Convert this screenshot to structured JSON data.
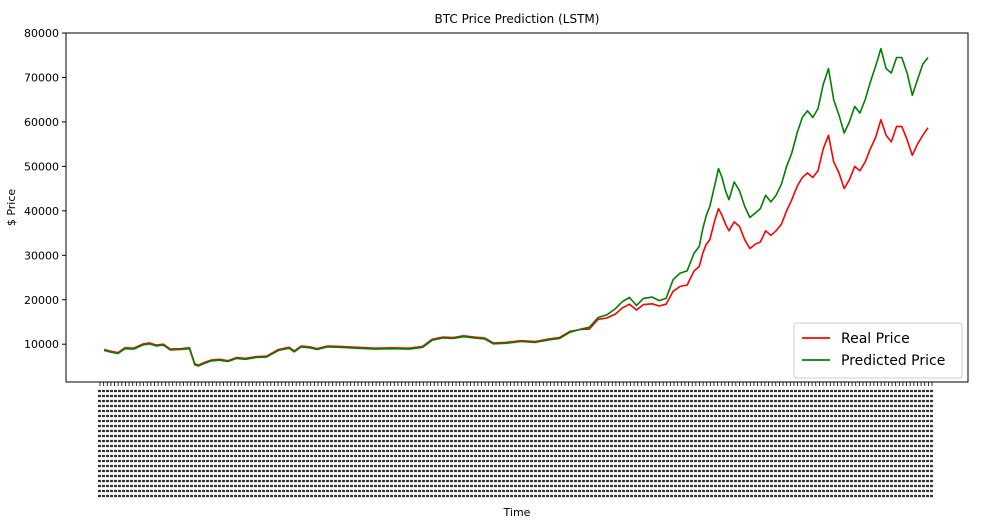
{
  "chart_data": {
    "type": "line",
    "title": "BTC Price Prediction (LSTM)",
    "xlabel": "Time",
    "ylabel": "$ Price",
    "ylim": [
      1500,
      80000
    ],
    "yticks": [
      10000,
      20000,
      30000,
      40000,
      50000,
      60000,
      70000,
      80000
    ],
    "x_tick_labels_legible": false,
    "legend_position": "lower-right",
    "series": [
      {
        "name": "Real Price",
        "color": "#ff0000",
        "points": [
          [
            0.0,
            8800
          ],
          [
            0.008,
            8400
          ],
          [
            0.016,
            8100
          ],
          [
            0.024,
            9200
          ],
          [
            0.034,
            9100
          ],
          [
            0.044,
            10000
          ],
          [
            0.052,
            10300
          ],
          [
            0.06,
            9800
          ],
          [
            0.068,
            10000
          ],
          [
            0.076,
            8900
          ],
          [
            0.088,
            9000
          ],
          [
            0.098,
            9200
          ],
          [
            0.104,
            5600
          ],
          [
            0.108,
            5300
          ],
          [
            0.114,
            5800
          ],
          [
            0.122,
            6400
          ],
          [
            0.132,
            6600
          ],
          [
            0.142,
            6300
          ],
          [
            0.152,
            7000
          ],
          [
            0.162,
            6800
          ],
          [
            0.174,
            7200
          ],
          [
            0.186,
            7300
          ],
          [
            0.2,
            8800
          ],
          [
            0.212,
            9300
          ],
          [
            0.218,
            8500
          ],
          [
            0.226,
            9600
          ],
          [
            0.236,
            9400
          ],
          [
            0.244,
            9000
          ],
          [
            0.256,
            9600
          ],
          [
            0.27,
            9500
          ],
          [
            0.29,
            9300
          ],
          [
            0.31,
            9100
          ],
          [
            0.33,
            9200
          ],
          [
            0.35,
            9100
          ],
          [
            0.365,
            9500
          ],
          [
            0.376,
            11100
          ],
          [
            0.388,
            11600
          ],
          [
            0.4,
            11500
          ],
          [
            0.412,
            11900
          ],
          [
            0.424,
            11600
          ],
          [
            0.436,
            11400
          ],
          [
            0.446,
            10300
          ],
          [
            0.46,
            10400
          ],
          [
            0.478,
            10800
          ],
          [
            0.494,
            10600
          ],
          [
            0.51,
            11200
          ],
          [
            0.522,
            11500
          ],
          [
            0.534,
            12900
          ],
          [
            0.546,
            13300
          ],
          [
            0.556,
            13400
          ],
          [
            0.566,
            15600
          ],
          [
            0.576,
            15900
          ],
          [
            0.586,
            16800
          ],
          [
            0.594,
            18200
          ],
          [
            0.602,
            19000
          ],
          [
            0.61,
            17700
          ],
          [
            0.618,
            18900
          ],
          [
            0.628,
            19100
          ],
          [
            0.636,
            18600
          ],
          [
            0.644,
            19000
          ],
          [
            0.652,
            21900
          ],
          [
            0.66,
            23000
          ],
          [
            0.668,
            23300
          ],
          [
            0.676,
            26500
          ],
          [
            0.682,
            27500
          ],
          [
            0.686,
            30500
          ],
          [
            0.69,
            32500
          ],
          [
            0.694,
            33500
          ],
          [
            0.7,
            38000
          ],
          [
            0.704,
            40500
          ],
          [
            0.708,
            39000
          ],
          [
            0.712,
            37000
          ],
          [
            0.716,
            35500
          ],
          [
            0.722,
            37500
          ],
          [
            0.728,
            36500
          ],
          [
            0.734,
            33500
          ],
          [
            0.74,
            31500
          ],
          [
            0.746,
            32500
          ],
          [
            0.752,
            33000
          ],
          [
            0.758,
            35500
          ],
          [
            0.764,
            34500
          ],
          [
            0.77,
            35500
          ],
          [
            0.776,
            37000
          ],
          [
            0.782,
            40000
          ],
          [
            0.788,
            42500
          ],
          [
            0.794,
            45500
          ],
          [
            0.8,
            47500
          ],
          [
            0.806,
            48500
          ],
          [
            0.812,
            47500
          ],
          [
            0.818,
            49000
          ],
          [
            0.824,
            54000
          ],
          [
            0.83,
            57000
          ],
          [
            0.836,
            51000
          ],
          [
            0.842,
            48500
          ],
          [
            0.848,
            45000
          ],
          [
            0.854,
            47000
          ],
          [
            0.86,
            50000
          ],
          [
            0.866,
            49000
          ],
          [
            0.872,
            51000
          ],
          [
            0.878,
            54000
          ],
          [
            0.884,
            56500
          ],
          [
            0.89,
            60500
          ],
          [
            0.896,
            57000
          ],
          [
            0.902,
            55500
          ],
          [
            0.908,
            59000
          ],
          [
            0.914,
            59000
          ],
          [
            0.92,
            56000
          ],
          [
            0.926,
            52500
          ],
          [
            0.932,
            55000
          ],
          [
            0.938,
            57000
          ],
          [
            0.944,
            58700
          ]
        ]
      },
      {
        "name": "Predicted Price",
        "color": "#008000",
        "points": [
          [
            0.0,
            8600
          ],
          [
            0.008,
            8200
          ],
          [
            0.016,
            7900
          ],
          [
            0.024,
            9000
          ],
          [
            0.034,
            8900
          ],
          [
            0.044,
            9800
          ],
          [
            0.052,
            10100
          ],
          [
            0.06,
            9600
          ],
          [
            0.068,
            9800
          ],
          [
            0.076,
            8700
          ],
          [
            0.088,
            8800
          ],
          [
            0.098,
            9000
          ],
          [
            0.104,
            5400
          ],
          [
            0.108,
            5100
          ],
          [
            0.114,
            5600
          ],
          [
            0.122,
            6200
          ],
          [
            0.132,
            6400
          ],
          [
            0.142,
            6100
          ],
          [
            0.152,
            6800
          ],
          [
            0.162,
            6600
          ],
          [
            0.174,
            7000
          ],
          [
            0.186,
            7100
          ],
          [
            0.2,
            8600
          ],
          [
            0.212,
            9100
          ],
          [
            0.218,
            8300
          ],
          [
            0.226,
            9400
          ],
          [
            0.236,
            9200
          ],
          [
            0.244,
            8800
          ],
          [
            0.256,
            9400
          ],
          [
            0.27,
            9300
          ],
          [
            0.29,
            9100
          ],
          [
            0.31,
            8900
          ],
          [
            0.33,
            9000
          ],
          [
            0.35,
            8900
          ],
          [
            0.365,
            9300
          ],
          [
            0.376,
            10900
          ],
          [
            0.388,
            11400
          ],
          [
            0.4,
            11300
          ],
          [
            0.412,
            11700
          ],
          [
            0.424,
            11400
          ],
          [
            0.436,
            11200
          ],
          [
            0.446,
            10100
          ],
          [
            0.46,
            10200
          ],
          [
            0.478,
            10600
          ],
          [
            0.494,
            10400
          ],
          [
            0.51,
            11000
          ],
          [
            0.522,
            11300
          ],
          [
            0.534,
            12700
          ],
          [
            0.546,
            13400
          ],
          [
            0.556,
            13800
          ],
          [
            0.566,
            16000
          ],
          [
            0.576,
            16600
          ],
          [
            0.586,
            18000
          ],
          [
            0.594,
            19600
          ],
          [
            0.602,
            20500
          ],
          [
            0.61,
            18700
          ],
          [
            0.618,
            20300
          ],
          [
            0.628,
            20600
          ],
          [
            0.636,
            19800
          ],
          [
            0.644,
            20300
          ],
          [
            0.652,
            24500
          ],
          [
            0.66,
            26000
          ],
          [
            0.668,
            26500
          ],
          [
            0.676,
            30500
          ],
          [
            0.682,
            32000
          ],
          [
            0.686,
            36000
          ],
          [
            0.69,
            39000
          ],
          [
            0.694,
            41000
          ],
          [
            0.7,
            46000
          ],
          [
            0.704,
            49500
          ],
          [
            0.708,
            47500
          ],
          [
            0.712,
            44500
          ],
          [
            0.716,
            42500
          ],
          [
            0.722,
            46500
          ],
          [
            0.728,
            44500
          ],
          [
            0.734,
            41000
          ],
          [
            0.74,
            38500
          ],
          [
            0.746,
            39500
          ],
          [
            0.752,
            40500
          ],
          [
            0.758,
            43500
          ],
          [
            0.764,
            42000
          ],
          [
            0.77,
            43500
          ],
          [
            0.776,
            46000
          ],
          [
            0.782,
            50000
          ],
          [
            0.788,
            53000
          ],
          [
            0.794,
            57500
          ],
          [
            0.8,
            61000
          ],
          [
            0.806,
            62500
          ],
          [
            0.812,
            61000
          ],
          [
            0.818,
            63000
          ],
          [
            0.824,
            68500
          ],
          [
            0.83,
            72000
          ],
          [
            0.836,
            65000
          ],
          [
            0.842,
            61500
          ],
          [
            0.848,
            57500
          ],
          [
            0.854,
            60000
          ],
          [
            0.86,
            63500
          ],
          [
            0.866,
            62000
          ],
          [
            0.872,
            65000
          ],
          [
            0.878,
            69000
          ],
          [
            0.884,
            72500
          ],
          [
            0.89,
            76500
          ],
          [
            0.896,
            72000
          ],
          [
            0.902,
            71000
          ],
          [
            0.908,
            74500
          ],
          [
            0.914,
            74500
          ],
          [
            0.92,
            71000
          ],
          [
            0.926,
            66000
          ],
          [
            0.932,
            69500
          ],
          [
            0.938,
            73000
          ],
          [
            0.944,
            74500
          ]
        ]
      }
    ]
  }
}
